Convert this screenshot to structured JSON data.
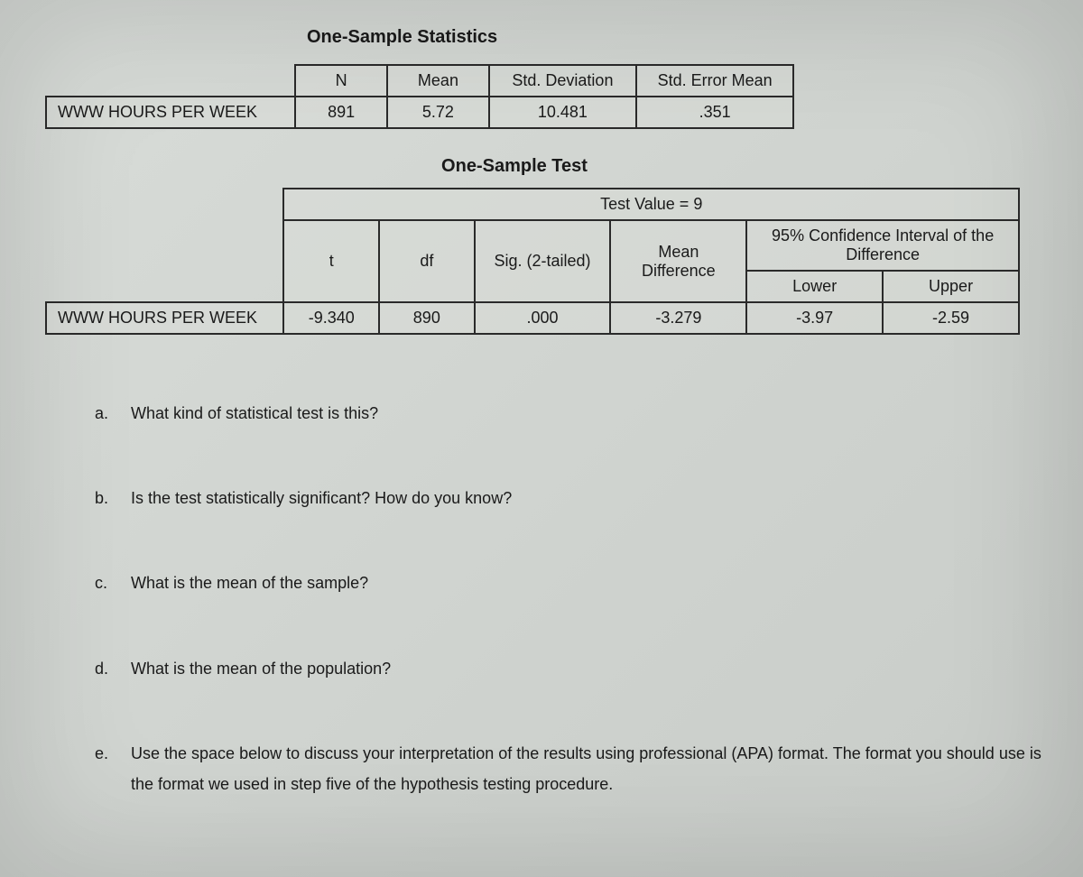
{
  "table1": {
    "title": "One-Sample Statistics",
    "headers": {
      "n": "N",
      "mean": "Mean",
      "sd": "Std. Deviation",
      "sem": "Std. Error Mean"
    },
    "row_label": "WWW HOURS PER WEEK",
    "n": "891",
    "mean": "5.72",
    "sd": "10.481",
    "sem": ".351"
  },
  "table2": {
    "title": "One-Sample Test",
    "test_value": "Test Value = 9",
    "ci_header": "95% Confidence Interval of the Difference",
    "headers": {
      "t": "t",
      "df": "df",
      "sig": "Sig. (2-tailed)",
      "md": "Mean Difference",
      "lower": "Lower",
      "upper": "Upper"
    },
    "row_label": "WWW HOURS PER WEEK",
    "t": "-9.340",
    "df": "890",
    "sig": ".000",
    "md": "-3.279",
    "lower": "-3.97",
    "upper": "-2.59"
  },
  "questions": {
    "a": {
      "letter": "a.",
      "text": "What kind of statistical test is this?"
    },
    "b": {
      "letter": "b.",
      "text": "Is the test statistically significant? How do you know?"
    },
    "c": {
      "letter": "c.",
      "text": "What is the mean of the sample?"
    },
    "d": {
      "letter": "d.",
      "text": "What is the mean of the population?"
    },
    "e": {
      "letter": "e.",
      "text": "Use the space below to discuss your interpretation of the results using professional (APA) format. The format you should use is the format we used in step five of the hypothesis testing procedure."
    }
  }
}
